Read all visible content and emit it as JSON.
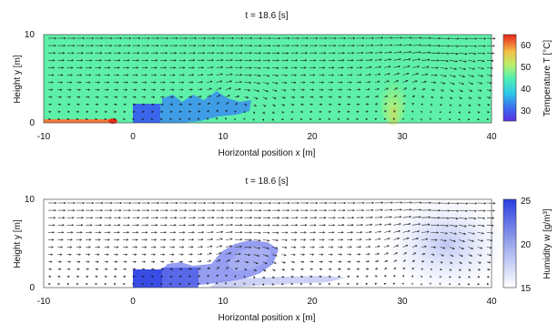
{
  "chart_data": [
    {
      "type": "heatmap",
      "title": "t =   18.6 [s]",
      "xlabel": "Horizontal position x [m]",
      "ylabel": "Height y [m]",
      "xlim": [
        -10,
        40
      ],
      "ylim": [
        0,
        10
      ],
      "x_ticks": [
        -10,
        0,
        10,
        20,
        30,
        40
      ],
      "y_ticks": [
        0,
        10
      ],
      "colorbar": {
        "label": "Temperature T [°C]",
        "range": [
          25,
          65
        ],
        "ticks": [
          30,
          40,
          50,
          60
        ],
        "colormap": "jet"
      },
      "field": {
        "name": "Temperature",
        "background_value": 42,
        "regions": [
          {
            "shape": "rect",
            "x": [
              0,
              3
            ],
            "y": [
              0,
              2.3
            ],
            "value": 30
          },
          {
            "shape": "blob",
            "x": [
              3,
              13
            ],
            "y": [
              0.3,
              2.5
            ],
            "value": 35
          },
          {
            "shape": "ground-layer",
            "x": [
              -10,
              -2
            ],
            "y": [
              0,
              0.3
            ],
            "value": 60
          },
          {
            "shape": "plume",
            "x": [
              28,
              31
            ],
            "y": [
              0,
              7
            ],
            "value": 46
          }
        ]
      },
      "vectors": "velocity field arrows (rightward flow aloft, recirculation vortices near x≈12 and x≈33)"
    },
    {
      "type": "heatmap",
      "title": "t =   18.6 [s]",
      "xlabel": "Horizontal position x [m]",
      "ylabel": "Height y [m]",
      "xlim": [
        -10,
        40
      ],
      "ylim": [
        0,
        10
      ],
      "x_ticks": [
        -10,
        0,
        10,
        20,
        30,
        40
      ],
      "y_ticks": [
        0,
        10
      ],
      "colorbar": {
        "label": "Humidity w [g/m³]",
        "range": [
          15,
          25
        ],
        "ticks": [
          15,
          20,
          25
        ],
        "colormap": "white-to-blue"
      },
      "field": {
        "name": "Humidity",
        "background_value": 15,
        "regions": [
          {
            "shape": "rect",
            "x": [
              0,
              3
            ],
            "y": [
              0,
              2.3
            ],
            "value": 24
          },
          {
            "shape": "blob",
            "x": [
              3,
              16
            ],
            "y": [
              0.3,
              5
            ],
            "value": 22
          },
          {
            "shape": "trail",
            "x": [
              12,
              27
            ],
            "y": [
              0,
              1.2
            ],
            "value": 18
          },
          {
            "shape": "plume",
            "x": [
              28,
              40
            ],
            "y": [
              0.5,
              8.5
            ],
            "value": 17.5
          }
        ]
      },
      "vectors": "velocity field arrows (same flow field as upper panel)"
    }
  ]
}
